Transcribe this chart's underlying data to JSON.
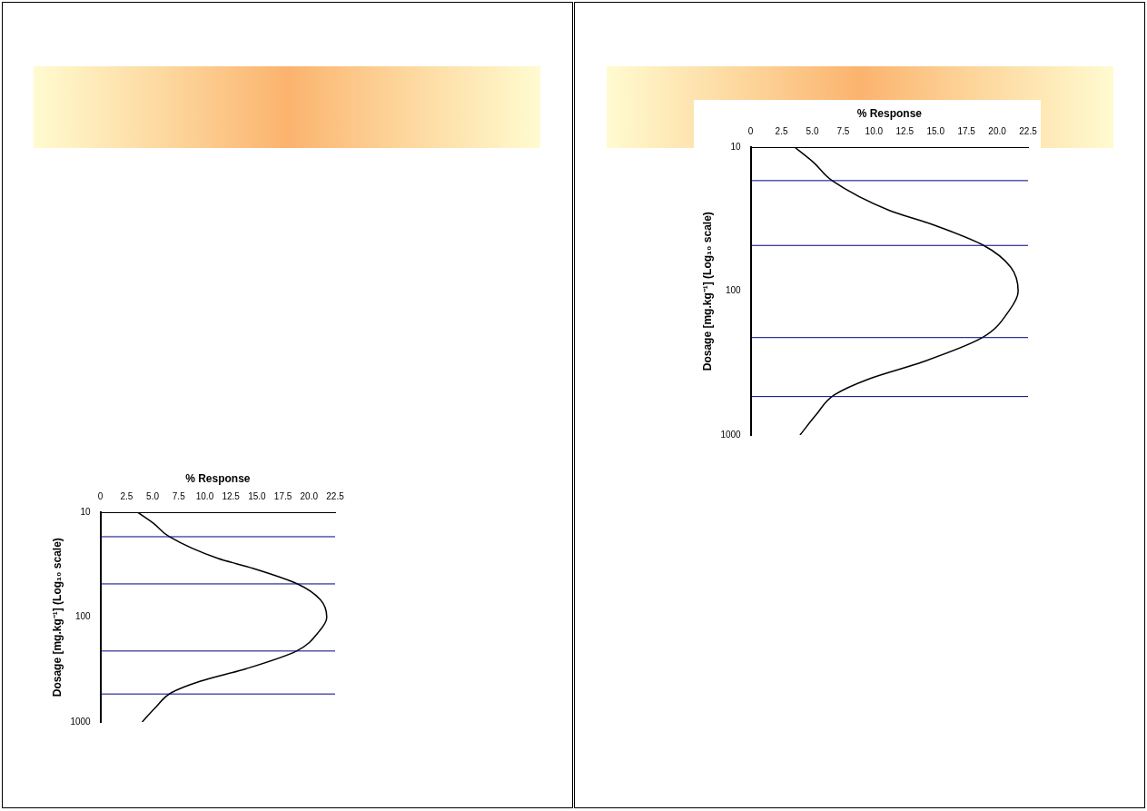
{
  "chart_data": [
    {
      "type": "line",
      "xlabel": "% Response",
      "ylabel": "Dosage [mg.kg⁻¹] (Log₁₀ scale)",
      "log": "y",
      "ylim": [
        1000,
        10
      ],
      "yticks": [
        10,
        100,
        1000
      ],
      "xlim": [
        0,
        22.5
      ],
      "xticks": [
        0,
        2.5,
        {
          "value": 5,
          "label": "5.0"
        },
        7.5,
        {
          "value": 10,
          "label": "10.0"
        },
        12.5,
        {
          "value": 15,
          "label": "15.0"
        },
        17.5,
        {
          "value": 20,
          "label": "20.0"
        },
        22.5
      ],
      "grid": false,
      "legend": false,
      "marker": "none",
      "line_style": "solid",
      "series": [
        {
          "color": "#000000",
          "x": [
            3.6,
            5.1,
            6.6,
            11.3,
            14.6,
            18.9,
            21.1,
            21.7,
            21.0,
            18.8,
            14.0,
            9.6,
            6.8,
            5.3,
            4.0
          ],
          "values": [
            10,
            12.7,
            17,
            27.5,
            34,
            48,
            68,
            100,
            135,
            210,
            309,
            407,
            525,
            724,
            1000
          ]
        }
      ],
      "ref_lines": [
        {
          "axis": "y",
          "value": 17,
          "color": "#000080"
        },
        {
          "axis": "y",
          "value": 48,
          "color": "#000080"
        },
        {
          "axis": "y",
          "value": 210,
          "color": "#000080"
        },
        {
          "axis": "y",
          "value": 540,
          "color": "#000080"
        }
      ]
    },
    {
      "type": "line",
      "xlabel": "% Response",
      "ylabel": "Dosage [mg.kg⁻¹] (Log₁₀ scale)",
      "log": "y",
      "ylim": [
        1000,
        10
      ],
      "yticks": [
        10,
        100,
        1000
      ],
      "xlim": [
        0,
        22.5
      ],
      "xticks": [
        0,
        2.5,
        {
          "value": 5,
          "label": "5.0"
        },
        7.5,
        {
          "value": 10,
          "label": "10.0"
        },
        12.5,
        {
          "value": 15,
          "label": "15.0"
        },
        17.5,
        {
          "value": 20,
          "label": "20.0"
        },
        22.5
      ],
      "grid": false,
      "legend": false,
      "marker": "none",
      "line_style": "solid",
      "series": [
        {
          "color": "#000000",
          "x": [
            3.6,
            5.1,
            6.6,
            11.3,
            14.6,
            18.9,
            21.1,
            21.7,
            21.0,
            18.8,
            14.0,
            9.6,
            6.8,
            5.3,
            4.0
          ],
          "values": [
            10,
            12.7,
            17,
            27.5,
            34,
            48,
            68,
            100,
            135,
            210,
            309,
            407,
            525,
            724,
            1000
          ]
        }
      ],
      "ref_lines": [
        {
          "axis": "y",
          "value": 17,
          "color": "#000080"
        },
        {
          "axis": "y",
          "value": 48,
          "color": "#000080"
        },
        {
          "axis": "y",
          "value": 210,
          "color": "#000080"
        },
        {
          "axis": "y",
          "value": 540,
          "color": "#000080"
        }
      ]
    }
  ]
}
